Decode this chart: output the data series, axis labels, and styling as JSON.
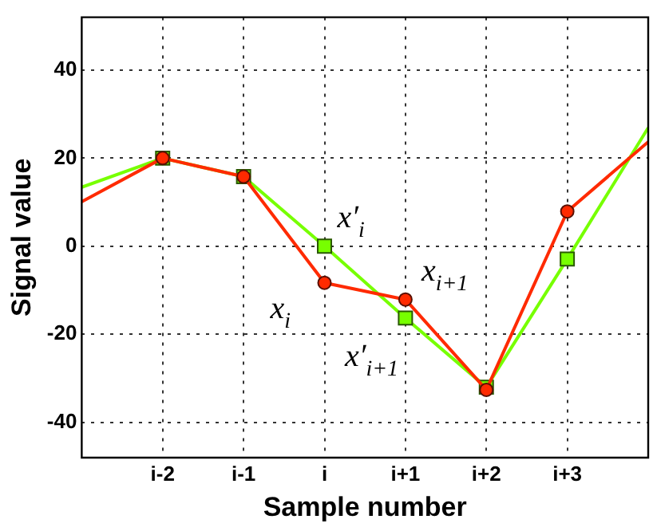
{
  "chart_data": {
    "type": "line",
    "xlabel": "Sample number",
    "ylabel": "Signal value",
    "categories": [
      null,
      "i-2",
      "i-1",
      "i",
      "i+1",
      "i+2",
      "i+3",
      null
    ],
    "ylim": [
      -48,
      52
    ],
    "yticks": [
      -40,
      -20,
      0,
      20,
      40
    ],
    "grid": true,
    "legend": false,
    "line_style": "solid",
    "series": [
      {
        "color": "#ff2a00",
        "marker": "circle",
        "values": [
          10.1,
          20,
          15.8,
          -8.3,
          -12.1,
          -32.6,
          7.9,
          23.7
        ]
      },
      {
        "color": "#77ff00",
        "marker": "square",
        "values": [
          13.4,
          20,
          15.8,
          0,
          -16.3,
          -32,
          -2.9,
          26.9
        ]
      }
    ],
    "annotations": [
      {
        "text": "x′$_{i}$",
        "x": "i",
        "y": 0
      },
      {
        "text": "x$_{i}$",
        "x": "i",
        "y": -8.3
      },
      {
        "text": "x$_{i+1}$",
        "x": "i+1",
        "y": -12.1
      },
      {
        "text": "x′$_{i+1}$",
        "x": "i+1",
        "y": -16.3
      }
    ]
  }
}
